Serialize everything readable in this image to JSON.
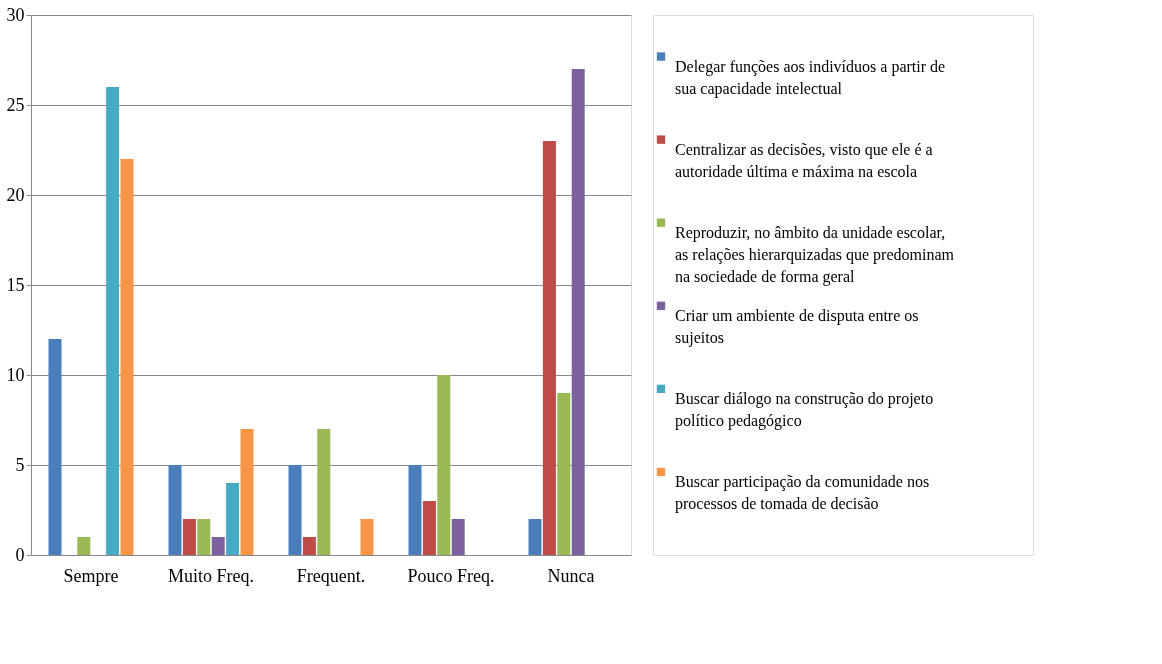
{
  "chart_data": {
    "type": "bar",
    "categories": [
      "Sempre",
      "Muito Freq.",
      "Frequent.",
      "Pouco Freq.",
      "Nunca"
    ],
    "series": [
      {
        "name": "Delegar funções aos indivíduos a partir de sua capacidade intelectual",
        "color": "#4a7ebb",
        "values": [
          12,
          5,
          5,
          5,
          2
        ]
      },
      {
        "name": "Centralizar as decisões, visto que ele é a autoridade última e máxima na escola",
        "color": "#be4b48",
        "values": [
          0,
          2,
          1,
          3,
          23
        ]
      },
      {
        "name": "Reproduzir, no âmbito da unidade escolar, as relações hierarquizadas que predominam na sociedade de forma geral",
        "color": "#98b954",
        "values": [
          1,
          2,
          7,
          10,
          9
        ]
      },
      {
        "name": "Criar um ambiente de disputa entre os sujeitos",
        "color": "#7d60a0",
        "values": [
          0,
          1,
          0,
          2,
          27
        ]
      },
      {
        "name": "Buscar diálogo na construção do projeto político pedagógico",
        "color": "#46aac5",
        "values": [
          26,
          4,
          0,
          0,
          0
        ]
      },
      {
        "name": "Buscar participação da comunidade nos processos de tomada de decisão",
        "color": "#f79646",
        "values": [
          22,
          7,
          2,
          0,
          0
        ]
      }
    ],
    "ylim": [
      0,
      30
    ],
    "yticks": [
      0,
      5,
      10,
      15,
      20,
      25,
      30
    ],
    "grid": "y",
    "legend": "right"
  }
}
